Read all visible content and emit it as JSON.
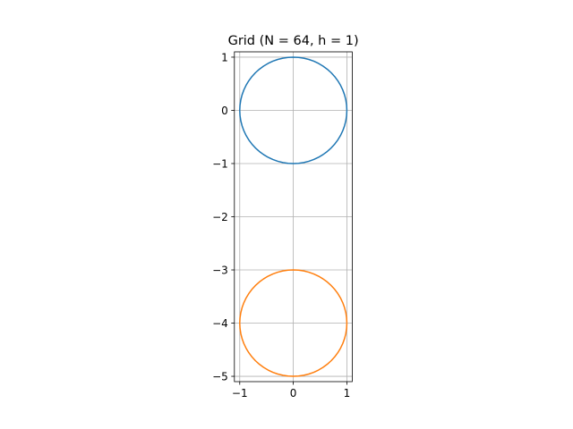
{
  "chart_data": {
    "type": "line",
    "title": "Grid (N = 64, h = 1)",
    "xlabel": "",
    "ylabel": "",
    "xlim": [
      -1.1,
      1.1
    ],
    "ylim": [
      -5.1,
      1.1
    ],
    "grid": true,
    "aspect": "equal",
    "x_ticks": [
      {
        "value": -1,
        "label": "−1"
      },
      {
        "value": 0,
        "label": "0"
      },
      {
        "value": 1,
        "label": "1"
      }
    ],
    "y_ticks": [
      {
        "value": 1,
        "label": "1"
      },
      {
        "value": 0,
        "label": "0"
      },
      {
        "value": -1,
        "label": "−1"
      },
      {
        "value": -2,
        "label": "−2"
      },
      {
        "value": -3,
        "label": "−3"
      },
      {
        "value": -4,
        "label": "−4"
      },
      {
        "value": -5,
        "label": "−5"
      }
    ],
    "series": [
      {
        "shape": "circle",
        "center": [
          0,
          0
        ],
        "radius": 1,
        "points": 64,
        "color": "#1f77b4"
      },
      {
        "shape": "circle",
        "center": [
          0,
          -4
        ],
        "radius": 1,
        "points": 64,
        "color": "#ff7f0e"
      }
    ]
  }
}
